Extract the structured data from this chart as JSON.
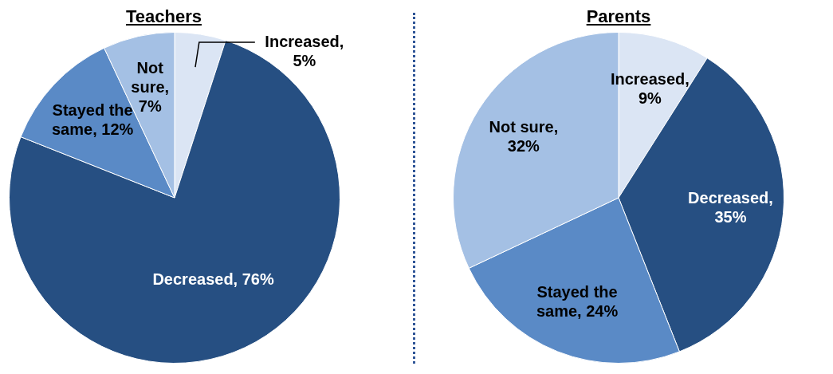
{
  "chart_data": [
    {
      "type": "pie",
      "title": "Teachers",
      "categories": [
        "Increased",
        "Decreased",
        "Stayed the same",
        "Not sure"
      ],
      "values": [
        5,
        76,
        12,
        7
      ],
      "colors": [
        "#dbe5f4",
        "#264f82",
        "#5a8ac6",
        "#a4c0e4"
      ],
      "value_labels": [
        ", 5%",
        ", 76%",
        ", 12%",
        ", 7%"
      ],
      "legend": false
    },
    {
      "type": "pie",
      "title": "Parents",
      "categories": [
        "Increased",
        "Decreased",
        "Stayed the same",
        "Not sure"
      ],
      "values": [
        9,
        35,
        24,
        32
      ],
      "colors": [
        "#dbe5f4",
        "#264f82",
        "#5a8ac6",
        "#a4c0e4"
      ],
      "value_labels": [
        ", 9%",
        ", 35%",
        ", 24%",
        ", 32%"
      ],
      "legend": false
    }
  ]
}
